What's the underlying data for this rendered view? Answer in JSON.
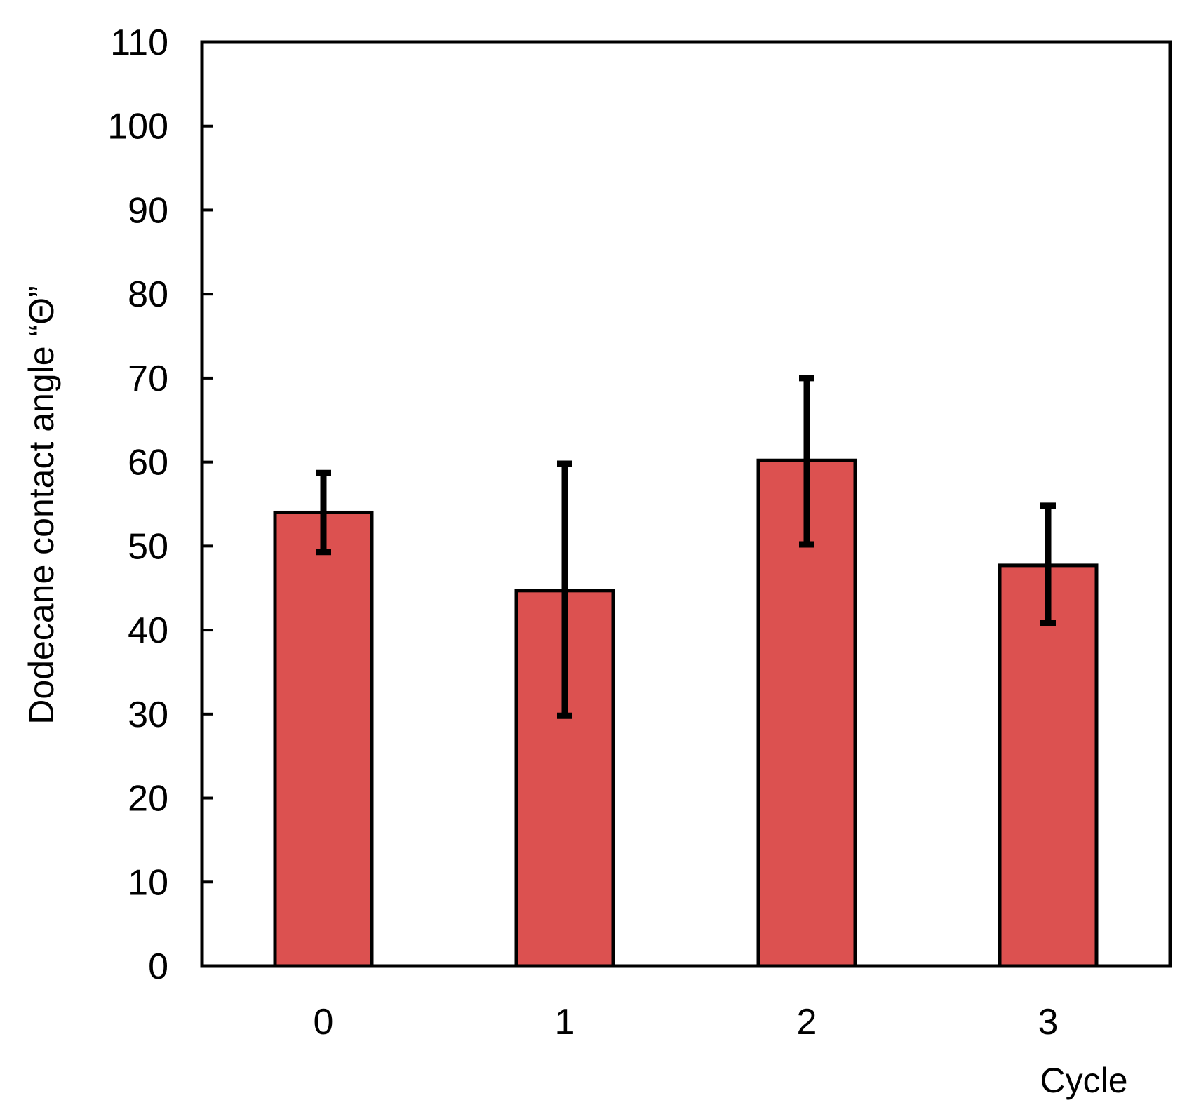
{
  "chart_data": {
    "type": "bar",
    "title": "",
    "xlabel": "Cycle",
    "ylabel": "Dodecane contact angle “Θ”",
    "categories": [
      "0",
      "1",
      "2",
      "3"
    ],
    "values": [
      54,
      44.7,
      60.2,
      47.7
    ],
    "error_low": [
      49.3,
      29.8,
      50.2,
      40.8
    ],
    "error_high": [
      58.7,
      59.8,
      70.0,
      54.8
    ],
    "ylim": [
      0,
      110
    ],
    "yticks": [
      0,
      10,
      20,
      30,
      40,
      50,
      60,
      70,
      80,
      90,
      100,
      110
    ],
    "grid": false,
    "legend": null
  },
  "colors": {
    "bar_fill": "#dc5150",
    "bar_stroke": "#000000",
    "error_bar": "#000000",
    "axis": "#000000",
    "background": "#ffffff"
  }
}
